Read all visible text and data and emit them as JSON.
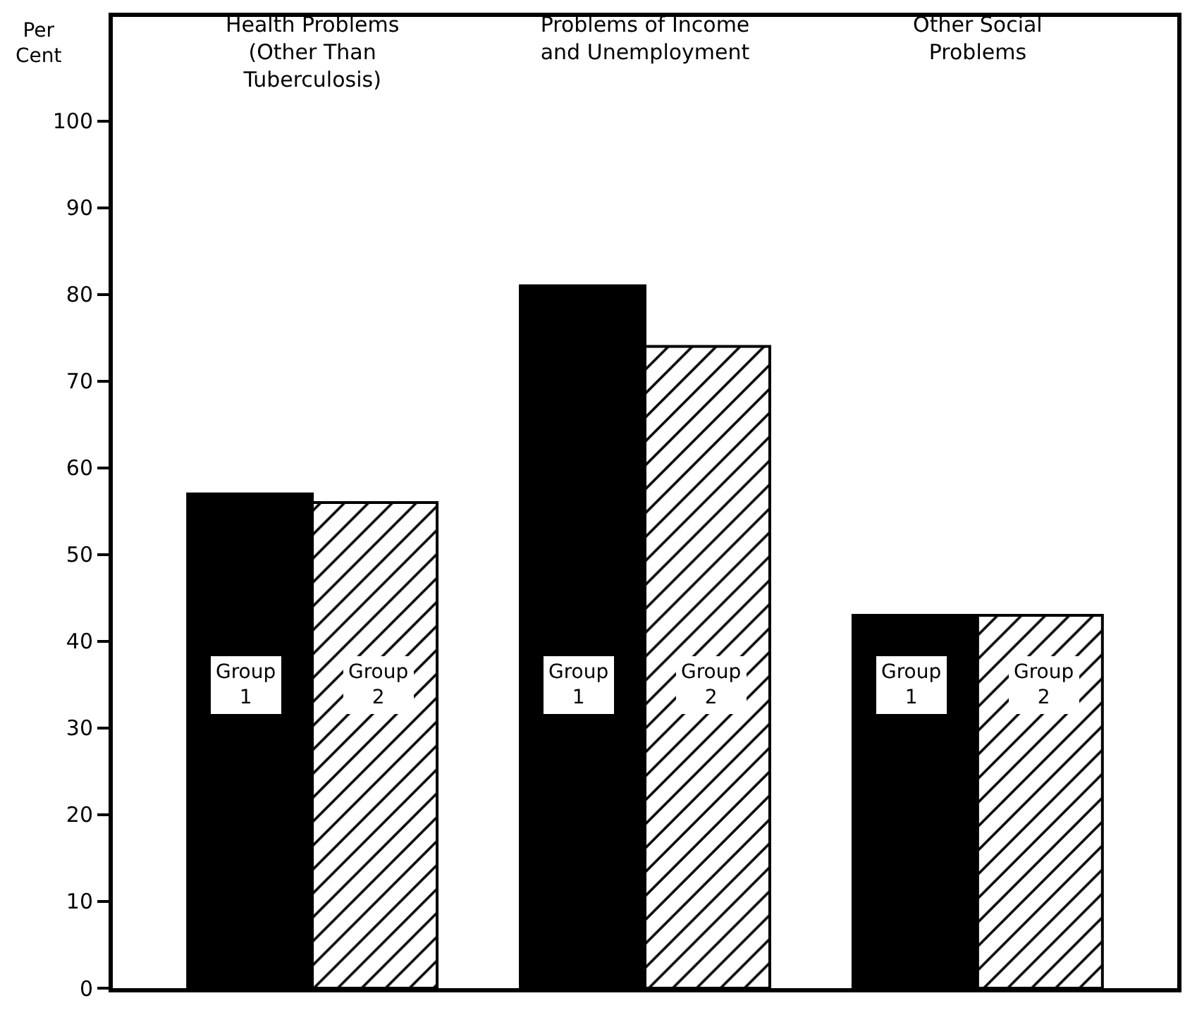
{
  "chart_data": {
    "type": "bar",
    "ylabel": "Per Cent",
    "categories": [
      "Health Problems (Other Than Tuberculosis)",
      "Problems of Income and Unemployment",
      "Other Social Problems"
    ],
    "series": [
      {
        "color": "#000000",
        "values": [
          57,
          81,
          43
        ]
      },
      {
        "color": "#000000",
        "values": [
          56,
          74,
          43
        ]
      }
    ],
    "annotations": [
      {
        "text": "Group 1",
        "x": "Health Problems (Other Than Tuberculosis)",
        "y": 35
      },
      {
        "text": "Group 2",
        "x": "Health Problems (Other Than Tuberculosis)",
        "y": 35
      },
      {
        "text": "Group 1",
        "x": "Problems of Income and Unemployment",
        "y": 35
      },
      {
        "text": "Group 2",
        "x": "Problems of Income and Unemployment",
        "y": 35
      },
      {
        "text": "Group 1",
        "x": "Other Social Problems",
        "y": 35
      },
      {
        "text": "Group 2",
        "x": "Other Social Problems",
        "y": 35
      }
    ],
    "ylim": [
      0,
      112
    ],
    "yticks": [
      0,
      10,
      20,
      30,
      40,
      50,
      60,
      70,
      80,
      90,
      100
    ],
    "grid": false,
    "legend": false
  }
}
